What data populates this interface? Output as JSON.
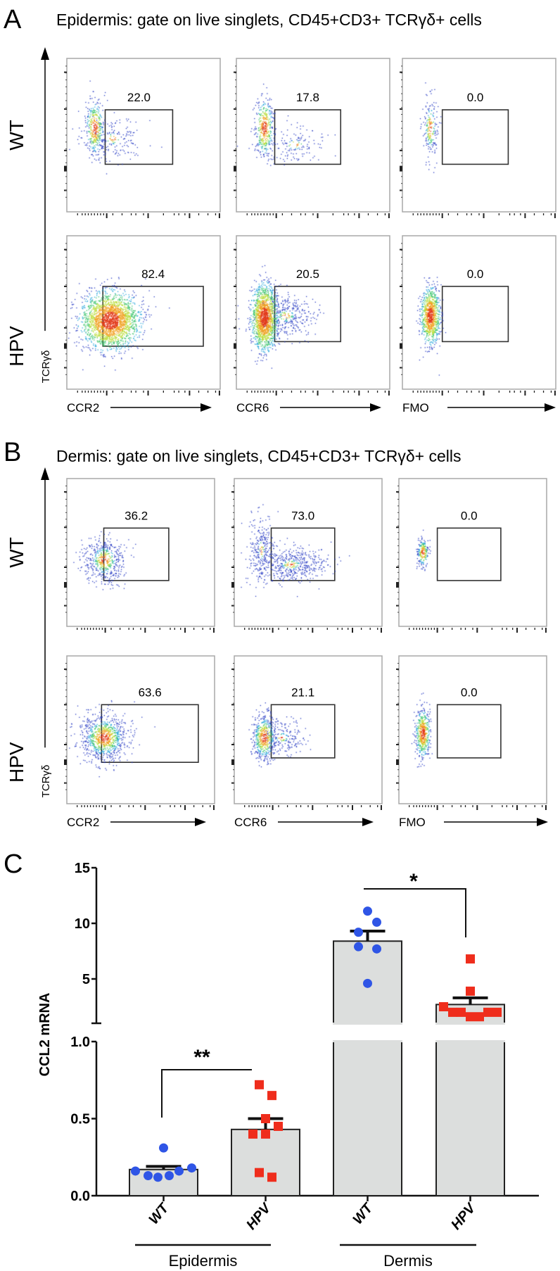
{
  "panels": [
    {
      "letter": "A",
      "title": "Epidermis: gate on live singlets, CD45+CD3+ TCRγδ+ cells",
      "y_axis_label": "TCRγδ",
      "x_axis_labels": [
        "CCR2",
        "CCR6",
        "FMO"
      ],
      "rows": [
        {
          "label": "WT",
          "gates": [
            "22.0",
            "17.8",
            "0.0"
          ]
        },
        {
          "label": "HPV",
          "gates": [
            "82.4",
            "20.5",
            "0.0"
          ]
        }
      ]
    },
    {
      "letter": "B",
      "title": "Dermis: gate on live singlets, CD45+CD3+ TCRγδ+ cells",
      "y_axis_label": "TCRγδ",
      "x_axis_labels": [
        "CCR2",
        "CCR6",
        "FMO"
      ],
      "rows": [
        {
          "label": "WT",
          "gates": [
            "36.2",
            "73.0",
            "0.0"
          ]
        },
        {
          "label": "HPV",
          "gates": [
            "63.6",
            "21.1",
            "0.0"
          ]
        }
      ]
    }
  ],
  "chart_data": {
    "type": "bar",
    "panel_letter": "C",
    "title": "",
    "ylabel": "CCL2 mRNA",
    "xlabel": "",
    "y_axis_broken": true,
    "ylim_lower": [
      0,
      1.0
    ],
    "ylim_upper": [
      1.0,
      15
    ],
    "ytick_labels_lower": [
      "0.0",
      "0.5",
      "1.0"
    ],
    "ytick_values_lower": [
      0,
      0.5,
      1.0
    ],
    "ytick_labels_upper": [
      "5",
      "10",
      "15"
    ],
    "ytick_values_upper": [
      5,
      10,
      15
    ],
    "groups": [
      "Epidermis",
      "Dermis"
    ],
    "bars": [
      {
        "group": "Epidermis",
        "category": "WT",
        "mean": 0.17,
        "sem": 0.02,
        "marker": "circle",
        "color": "#2f55e6",
        "points": [
          0.16,
          0.13,
          0.12,
          0.13,
          0.16,
          0.18,
          0.31
        ]
      },
      {
        "group": "Epidermis",
        "category": "HPV",
        "mean": 0.43,
        "sem": 0.07,
        "marker": "square",
        "color": "#ef2d1c",
        "points": [
          0.72,
          0.65,
          0.5,
          0.45,
          0.4,
          0.4,
          0.15,
          0.12
        ]
      },
      {
        "group": "Dermis",
        "category": "WT",
        "mean": 8.4,
        "sem": 0.9,
        "marker": "circle",
        "color": "#2f55e6",
        "points": [
          11.1,
          10.1,
          9.2,
          7.9,
          7.7,
          4.6
        ]
      },
      {
        "group": "Dermis",
        "category": "HPV",
        "mean": 2.7,
        "sem": 0.6,
        "marker": "square",
        "color": "#ef2d1c",
        "points": [
          6.8,
          3.9,
          2.5,
          2.0,
          2.0,
          1.6,
          1.6,
          2.0,
          2.0
        ]
      }
    ],
    "bar_fill": "#dcdedd",
    "significance": [
      {
        "group": "Epidermis",
        "label": "**"
      },
      {
        "group": "Dermis",
        "label": "*"
      }
    ]
  }
}
